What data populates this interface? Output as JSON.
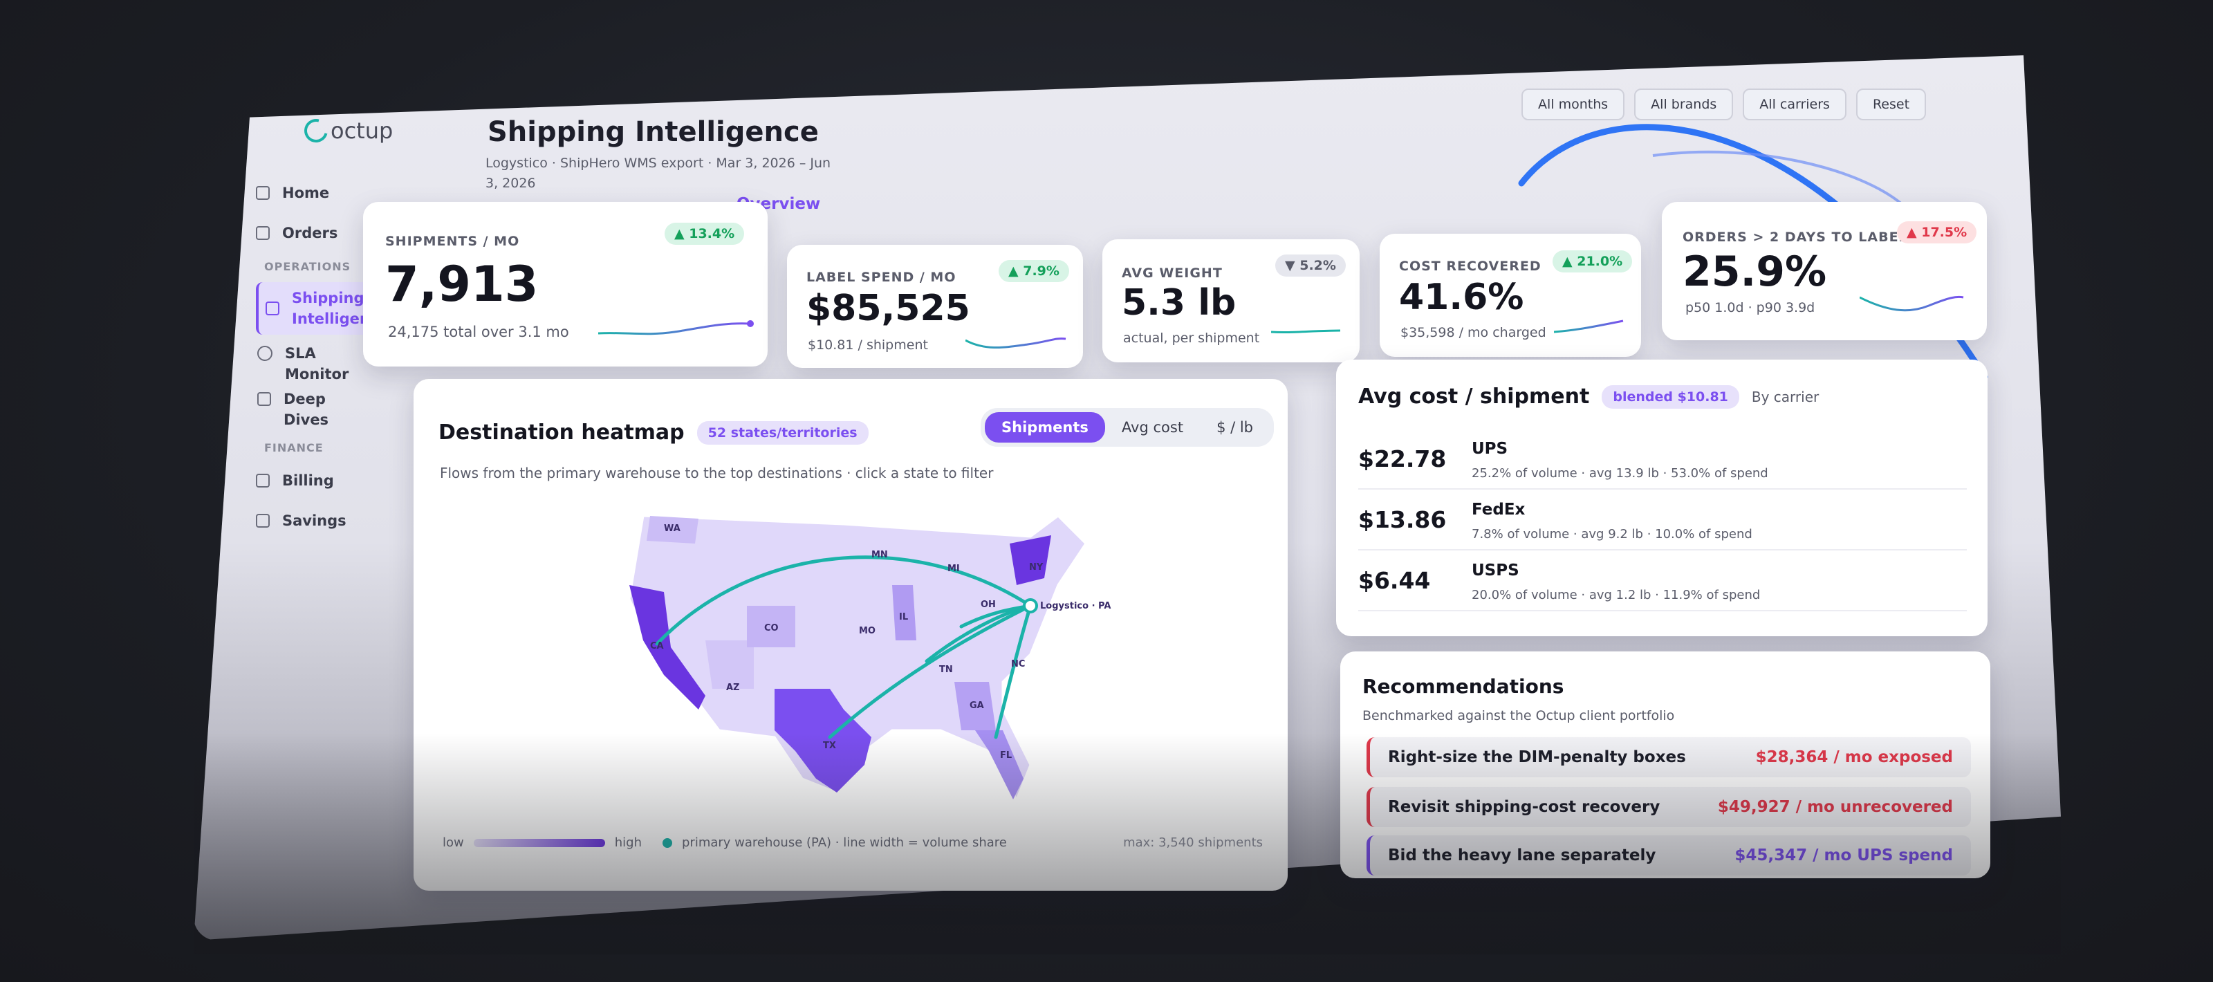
{
  "app": {
    "logo_text": "octup",
    "title": "Shipping Intelligence",
    "subtitle": "Logystico · ShipHero WMS export · Mar 3, 2026 – Jun 3, 2026",
    "breadcrumb": "Overview",
    "accent_color": "#7b4ff0",
    "teal_color": "#1bb3a9"
  },
  "sidebar": {
    "items": [
      {
        "label": "Home",
        "icon": "square-icon"
      },
      {
        "label": "Orders",
        "icon": "square-icon"
      }
    ],
    "sections": [
      {
        "label": "OPERATIONS"
      },
      {
        "label": "FINANCE"
      }
    ],
    "operations": [
      {
        "label": "Shipping Intelligence",
        "active": true
      },
      {
        "label": "SLA Monitor"
      },
      {
        "label": "Deep Dives"
      }
    ],
    "finance": [
      {
        "label": "Billing"
      },
      {
        "label": "Savings"
      }
    ]
  },
  "filters": [
    "All months",
    "All brands",
    "All carriers",
    "Reset"
  ],
  "kpis": [
    {
      "label": "SHIPMENTS / MO",
      "value": "7,913",
      "sub": "24,175 total over 3.1 mo",
      "delta": "▲ 13.4%",
      "trend": "up"
    },
    {
      "label": "LABEL SPEND / MO",
      "value": "$85,525",
      "sub": "$10.81 / shipment",
      "delta": "▲ 7.9%",
      "trend": "up"
    },
    {
      "label": "AVG WEIGHT",
      "value": "5.3 lb",
      "sub": "actual, per shipment",
      "delta": "▼ 5.2%",
      "trend": "down"
    },
    {
      "label": "COST RECOVERED",
      "value": "41.6%",
      "sub": "$35,598 / mo charged",
      "delta": "▲ 21.0%",
      "trend": "up"
    },
    {
      "label": "ORDERS > 2 DAYS TO LABEL",
      "value": "25.9%",
      "sub": "p50 1.0d · p90 3.9d",
      "delta": "▲ 17.5%",
      "trend": "bad"
    }
  ],
  "heatmap": {
    "title": "Destination heatmap",
    "badge": "52 states/territories",
    "subtitle": "Flows from the primary warehouse to the top destinations · click a state to filter",
    "toggle": [
      "Shipments",
      "Avg cost",
      "$ / lb"
    ],
    "toggle_selected": "Shipments",
    "state_labels": [
      "WA",
      "MN",
      "MI",
      "NY",
      "CA",
      "CO",
      "IL",
      "OH",
      "MO",
      "TN",
      "NC",
      "AZ",
      "GA",
      "TX",
      "FL"
    ],
    "warehouse_label": "Logystico · PA",
    "legend_low": "low",
    "legend_high": "high",
    "legend_note": "primary warehouse (PA) · line width = volume share",
    "max_note": "max: 3,540 shipments"
  },
  "carriers": {
    "title": "Avg cost / shipment",
    "badge": "blended $10.81",
    "note": "By carrier",
    "rows": [
      {
        "cost": "$22.78",
        "name": "UPS",
        "stat": "25.2% of volume · avg 13.9 lb · 53.0% of spend"
      },
      {
        "cost": "$13.86",
        "name": "FedEx",
        "stat": "7.8% of volume · avg 9.2 lb · 10.0% of spend"
      },
      {
        "cost": "$6.44",
        "name": "USPS",
        "stat": "20.0% of volume · avg 1.2 lb · 11.9% of spend"
      }
    ]
  },
  "recommendations": {
    "title": "Recommendations",
    "subtitle": "Benchmarked against the Octup client portfolio",
    "items": [
      {
        "title": "Right-size the DIM-penalty boxes",
        "value": "$28,364 / mo exposed",
        "color": "#e0384a"
      },
      {
        "title": "Revisit shipping-cost recovery",
        "value": "$49,927 / mo unrecovered",
        "color": "#e0384a"
      },
      {
        "title": "Bid the heavy lane separately",
        "value": "$45,347 / mo UPS spend",
        "color": "#7b4ff0"
      }
    ]
  }
}
